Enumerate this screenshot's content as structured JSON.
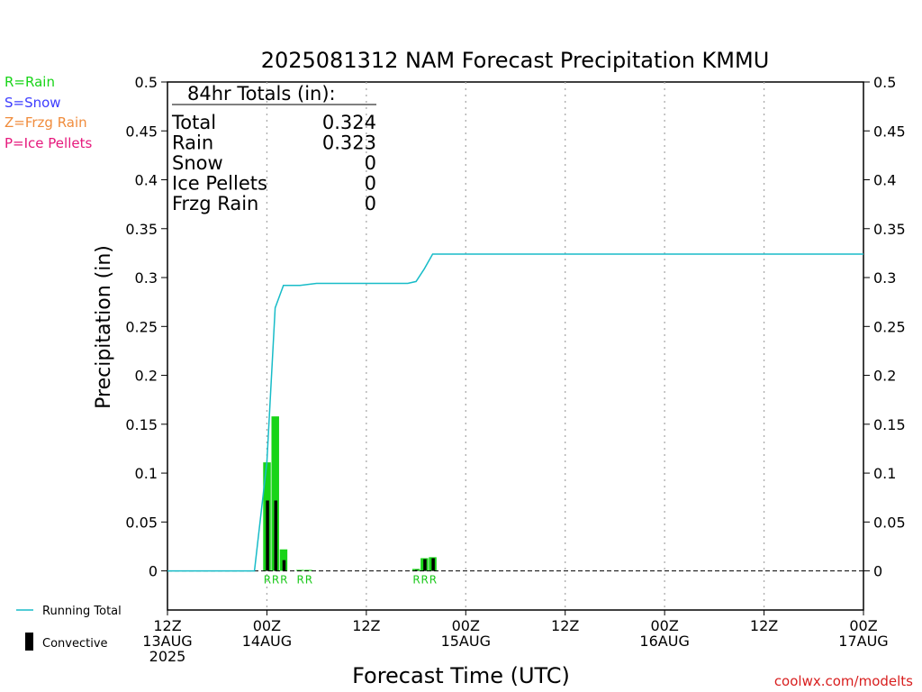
{
  "chart_data": {
    "type": "bar",
    "title": "2025081312 NAM Forecast Precipitation KMMU",
    "ylabel": "Precipitation (in)",
    "xlabel": "Forecast Time (UTC)",
    "ylim": [
      -0.04,
      0.5
    ],
    "yticks": [
      "0",
      "0.05",
      "0.1",
      "0.15",
      "0.2",
      "0.25",
      "0.3",
      "0.35",
      "0.4",
      "0.45",
      "0.5"
    ],
    "xlim_hours": [
      0,
      84
    ],
    "xticks": [
      {
        "hour": 0,
        "l1": "12Z",
        "l2": "13AUG",
        "l3": "2025"
      },
      {
        "hour": 12,
        "l1": "00Z",
        "l2": "14AUG",
        "l3": ""
      },
      {
        "hour": 24,
        "l1": "12Z",
        "l2": "",
        "l3": ""
      },
      {
        "hour": 36,
        "l1": "00Z",
        "l2": "15AUG",
        "l3": ""
      },
      {
        "hour": 48,
        "l1": "12Z",
        "l2": "",
        "l3": ""
      },
      {
        "hour": 60,
        "l1": "00Z",
        "l2": "16AUG",
        "l3": ""
      },
      {
        "hour": 72,
        "l1": "12Z",
        "l2": "",
        "l3": ""
      },
      {
        "hour": 84,
        "l1": "00Z",
        "l2": "17AUG",
        "l3": ""
      }
    ],
    "vgrid_hours": [
      12,
      24,
      36,
      48,
      60,
      72
    ],
    "rain_bars": [
      {
        "hour": 12,
        "value": 0.111,
        "convective": 0.072
      },
      {
        "hour": 13,
        "value": 0.158,
        "convective": 0.072
      },
      {
        "hour": 14,
        "value": 0.022,
        "convective": 0.011
      },
      {
        "hour": 16,
        "value": 0.001,
        "convective": 0.0
      },
      {
        "hour": 17,
        "value": 0.001,
        "convective": 0.0
      },
      {
        "hour": 30,
        "value": 0.002,
        "convective": 0.001
      },
      {
        "hour": 31,
        "value": 0.013,
        "convective": 0.012
      },
      {
        "hour": 32,
        "value": 0.014,
        "convective": 0.013
      }
    ],
    "bar_labels": [
      {
        "hour": 12,
        "text": "R"
      },
      {
        "hour": 13,
        "text": "R"
      },
      {
        "hour": 14,
        "text": "R"
      },
      {
        "hour": 16,
        "text": "R"
      },
      {
        "hour": 17,
        "text": "R"
      },
      {
        "hour": 30,
        "text": "R"
      },
      {
        "hour": 31,
        "text": "R"
      },
      {
        "hour": 32,
        "text": "R"
      }
    ],
    "running_total": {
      "hours": [
        0,
        10.5,
        12,
        13,
        14,
        15,
        16,
        17,
        18,
        19,
        20,
        21,
        22,
        23,
        24,
        25,
        26,
        27,
        28,
        29,
        30,
        31,
        32,
        33,
        36,
        48,
        60,
        72,
        84
      ],
      "values": [
        0,
        0,
        0.111,
        0.269,
        0.292,
        0.292,
        0.292,
        0.293,
        0.294,
        0.294,
        0.294,
        0.294,
        0.294,
        0.294,
        0.294,
        0.294,
        0.294,
        0.294,
        0.294,
        0.294,
        0.296,
        0.309,
        0.324,
        0.324,
        0.324,
        0.324,
        0.324,
        0.324,
        0.324
      ]
    },
    "colors": {
      "rain": "#18d418",
      "snow": "#3c3cff",
      "frzg": "#f08c3c",
      "ice": "#e6187c",
      "running": "#18bcc8",
      "convective": "#000000",
      "credit": "#d81e1e"
    },
    "legend": {
      "rain": "R=Rain",
      "snow": "S=Snow",
      "frzg": "Z=Frzg Rain",
      "ice": "P=Ice Pellets",
      "running": "Running Total",
      "convective": "Convective"
    },
    "totals": {
      "header": "84hr Totals (in):",
      "rows": [
        {
          "label": "Total",
          "value": "0.324"
        },
        {
          "label": "Rain",
          "value": "0.323"
        },
        {
          "label": "Snow",
          "value": "0"
        },
        {
          "label": "Ice Pellets",
          "value": "0"
        },
        {
          "label": "Frzg Rain",
          "value": "0"
        }
      ]
    },
    "credit": "coolwx.com/modelts"
  }
}
